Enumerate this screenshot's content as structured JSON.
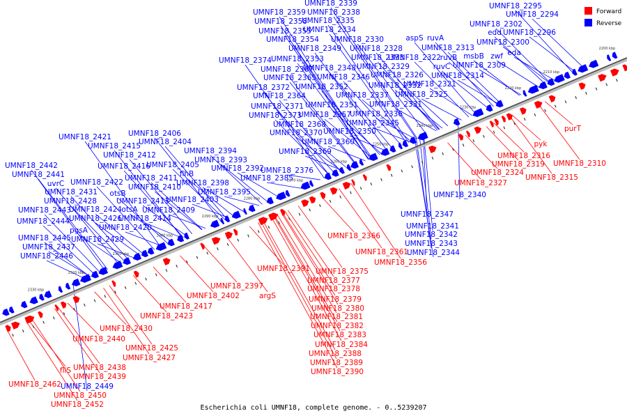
{
  "caption": "Escherichia coli UMNF18, complete genome. - 0..5239207",
  "legend": [
    {
      "label": "Forward",
      "color": "#ff0000"
    },
    {
      "label": "Reverse",
      "color": "#0000ff"
    }
  ],
  "colors": {
    "forward": "#ff0000",
    "reverse": "#0000ff",
    "backbone": "#555555"
  },
  "ticks": [
    "2200 kbp",
    "2210 kbp",
    "2220 kbp",
    "2230 kbp",
    "2240 kbp",
    "2250 kbp",
    "2260 kbp",
    "2270 kbp",
    "2280 kbp",
    "2290 kbp",
    "2300 kbp",
    "2310 kbp",
    "2320 kbp",
    "2330 kbp"
  ],
  "reverse_labels": [
    "UMNF18_2295",
    "UMNF18_2294",
    "UMNF18_2302",
    "edd",
    "UMNF18_2296",
    "UMNF18_2300",
    "eda",
    "zwf",
    "msbB",
    "UMNF18_2309",
    "UMNF18_2339",
    "UMNF18_2338",
    "UMNF18_2359",
    "UMNF18_2335",
    "UMNF18_2358",
    "UMNF18_2334",
    "UMNF18_2355",
    "UMNF18_2354",
    "UMNF18_2330",
    "aspS",
    "ruvA",
    "UMNF18_2313",
    "UMNF18_2349",
    "UMNF18_2328",
    "UMNF18_2333",
    "ruvB",
    "UMNF18_2322",
    "UMNF18_2374",
    "UMNF18_2353",
    "UMNF18_2329",
    "ruvC",
    "UMNF18_2367",
    "UMNF18_2348",
    "UMNF18_2326",
    "UMNF18_2314",
    "UMNF18_2365",
    "UMNF18_2346",
    "UMNF18_2321",
    "UMNF18_2372",
    "UMNF18_2352",
    "UMNF18_2332",
    "UMNF18_2364",
    "UMNF18_2337",
    "UMNF18_2325",
    "UMNF18_2371",
    "UMNF18_2351",
    "UMNF18_2331",
    "UMNF18_2373",
    "UMNF18_2357",
    "UMNF18_2336",
    "UMNF18_2368",
    "UMNF18_2345",
    "UMNF18_2370",
    "UMNF18_2350",
    "UMNF18_2360",
    "UMNF18_2369",
    "UMNF18_2406",
    "UMNF18_2421",
    "UMNF18_2404",
    "UMNF18_2415",
    "UMNF18_2412",
    "UMNF18_2394",
    "UMNF18_2393",
    "UMNF18_2442",
    "UMNF18_2416",
    "UMNF18_2405",
    "flhB",
    "UMNF18_2392",
    "UMNF18_2376",
    "UMNF18_2441",
    "UMNF18_2411",
    "UMNF18_2385",
    "uvrC",
    "UMNF18_2422",
    "UMNF18_2410",
    "UMNF18_2398",
    "UMNF18_2431",
    "otsB",
    "UMNF18_2395",
    "UMNF18_2413",
    "UMNF18_2403",
    "UMNF18_2428",
    "otsA",
    "UMNF18_2443",
    "UMNF18_2424",
    "UMNF18_2409",
    "UMNF18_2444",
    "UMNF18_2426",
    "UMNF18_2414",
    "pgsA",
    "UMNF18_2420",
    "UMNF18_2445",
    "UMNF18_2429",
    "UMNF18_2437",
    "UMNF18_2446",
    "UMNF18_2340",
    "UMNF18_2347",
    "UMNF18_2341",
    "UMNF18_2342",
    "UMNF18_2343",
    "UMNF18_2344",
    "UMNF18_2449"
  ],
  "forward_labels": [
    "purT",
    "pyk",
    "UMNF18_2316",
    "UMNF18_2310",
    "UMNF18_2319",
    "UMNF18_2324",
    "UMNF18_2315",
    "UMNF18_2327",
    "UMNF18_2366",
    "UMNF18_2361",
    "UMNF18_2356",
    "UMNF18_2391",
    "UMNF18_2375",
    "UMNF18_2377",
    "UMNF18_2378",
    "UMNF18_2379",
    "UMNF18_2380",
    "UMNF18_2381",
    "UMNF18_2382",
    "UMNF18_2383",
    "UMNF18_2384",
    "UMNF18_2388",
    "UMNF18_2389",
    "UMNF18_2390",
    "UMNF18_2397",
    "argS",
    "UMNF18_2402",
    "UMNF18_2417",
    "UMNF18_2423",
    "UMNF18_2430",
    "UMNF18_2440",
    "UMNF18_2425",
    "UMNF18_2427",
    "UMNF18_2438",
    "UMNF18_2439",
    "fliS",
    "UMNF18_2462",
    "UMNF18_2450",
    "UMNF18_2452"
  ]
}
